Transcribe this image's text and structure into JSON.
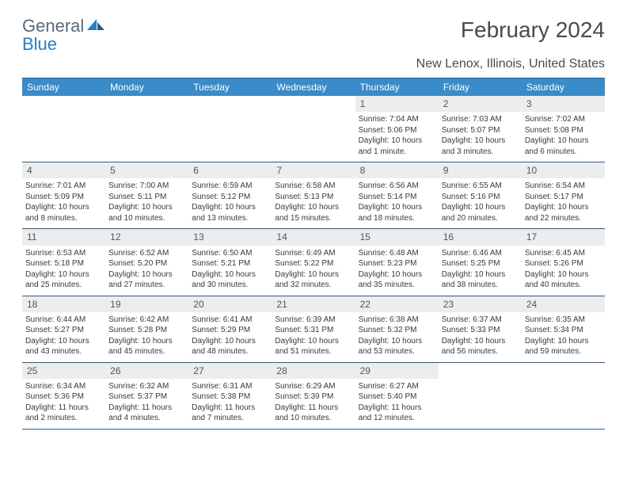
{
  "brand": {
    "word1": "General",
    "word2": "Blue"
  },
  "title": "February 2024",
  "location": "New Lenox, Illinois, United States",
  "colors": {
    "header_bg": "#3a8bc9",
    "header_text": "#ffffff",
    "daynum_bg": "#eceded",
    "border": "#2f5d8a",
    "body_text": "#3a3a3a",
    "logo_gray": "#5a6a78",
    "logo_blue": "#2b7fbf"
  },
  "weekdays": [
    "Sunday",
    "Monday",
    "Tuesday",
    "Wednesday",
    "Thursday",
    "Friday",
    "Saturday"
  ],
  "weeks": [
    [
      {
        "n": "",
        "t": ""
      },
      {
        "n": "",
        "t": ""
      },
      {
        "n": "",
        "t": ""
      },
      {
        "n": "",
        "t": ""
      },
      {
        "n": "1",
        "t": "Sunrise: 7:04 AM\nSunset: 5:06 PM\nDaylight: 10 hours and 1 minute."
      },
      {
        "n": "2",
        "t": "Sunrise: 7:03 AM\nSunset: 5:07 PM\nDaylight: 10 hours and 3 minutes."
      },
      {
        "n": "3",
        "t": "Sunrise: 7:02 AM\nSunset: 5:08 PM\nDaylight: 10 hours and 6 minutes."
      }
    ],
    [
      {
        "n": "4",
        "t": "Sunrise: 7:01 AM\nSunset: 5:09 PM\nDaylight: 10 hours and 8 minutes."
      },
      {
        "n": "5",
        "t": "Sunrise: 7:00 AM\nSunset: 5:11 PM\nDaylight: 10 hours and 10 minutes."
      },
      {
        "n": "6",
        "t": "Sunrise: 6:59 AM\nSunset: 5:12 PM\nDaylight: 10 hours and 13 minutes."
      },
      {
        "n": "7",
        "t": "Sunrise: 6:58 AM\nSunset: 5:13 PM\nDaylight: 10 hours and 15 minutes."
      },
      {
        "n": "8",
        "t": "Sunrise: 6:56 AM\nSunset: 5:14 PM\nDaylight: 10 hours and 18 minutes."
      },
      {
        "n": "9",
        "t": "Sunrise: 6:55 AM\nSunset: 5:16 PM\nDaylight: 10 hours and 20 minutes."
      },
      {
        "n": "10",
        "t": "Sunrise: 6:54 AM\nSunset: 5:17 PM\nDaylight: 10 hours and 22 minutes."
      }
    ],
    [
      {
        "n": "11",
        "t": "Sunrise: 6:53 AM\nSunset: 5:18 PM\nDaylight: 10 hours and 25 minutes."
      },
      {
        "n": "12",
        "t": "Sunrise: 6:52 AM\nSunset: 5:20 PM\nDaylight: 10 hours and 27 minutes."
      },
      {
        "n": "13",
        "t": "Sunrise: 6:50 AM\nSunset: 5:21 PM\nDaylight: 10 hours and 30 minutes."
      },
      {
        "n": "14",
        "t": "Sunrise: 6:49 AM\nSunset: 5:22 PM\nDaylight: 10 hours and 32 minutes."
      },
      {
        "n": "15",
        "t": "Sunrise: 6:48 AM\nSunset: 5:23 PM\nDaylight: 10 hours and 35 minutes."
      },
      {
        "n": "16",
        "t": "Sunrise: 6:46 AM\nSunset: 5:25 PM\nDaylight: 10 hours and 38 minutes."
      },
      {
        "n": "17",
        "t": "Sunrise: 6:45 AM\nSunset: 5:26 PM\nDaylight: 10 hours and 40 minutes."
      }
    ],
    [
      {
        "n": "18",
        "t": "Sunrise: 6:44 AM\nSunset: 5:27 PM\nDaylight: 10 hours and 43 minutes."
      },
      {
        "n": "19",
        "t": "Sunrise: 6:42 AM\nSunset: 5:28 PM\nDaylight: 10 hours and 45 minutes."
      },
      {
        "n": "20",
        "t": "Sunrise: 6:41 AM\nSunset: 5:29 PM\nDaylight: 10 hours and 48 minutes."
      },
      {
        "n": "21",
        "t": "Sunrise: 6:39 AM\nSunset: 5:31 PM\nDaylight: 10 hours and 51 minutes."
      },
      {
        "n": "22",
        "t": "Sunrise: 6:38 AM\nSunset: 5:32 PM\nDaylight: 10 hours and 53 minutes."
      },
      {
        "n": "23",
        "t": "Sunrise: 6:37 AM\nSunset: 5:33 PM\nDaylight: 10 hours and 56 minutes."
      },
      {
        "n": "24",
        "t": "Sunrise: 6:35 AM\nSunset: 5:34 PM\nDaylight: 10 hours and 59 minutes."
      }
    ],
    [
      {
        "n": "25",
        "t": "Sunrise: 6:34 AM\nSunset: 5:36 PM\nDaylight: 11 hours and 2 minutes."
      },
      {
        "n": "26",
        "t": "Sunrise: 6:32 AM\nSunset: 5:37 PM\nDaylight: 11 hours and 4 minutes."
      },
      {
        "n": "27",
        "t": "Sunrise: 6:31 AM\nSunset: 5:38 PM\nDaylight: 11 hours and 7 minutes."
      },
      {
        "n": "28",
        "t": "Sunrise: 6:29 AM\nSunset: 5:39 PM\nDaylight: 11 hours and 10 minutes."
      },
      {
        "n": "29",
        "t": "Sunrise: 6:27 AM\nSunset: 5:40 PM\nDaylight: 11 hours and 12 minutes."
      },
      {
        "n": "",
        "t": ""
      },
      {
        "n": "",
        "t": ""
      }
    ]
  ]
}
